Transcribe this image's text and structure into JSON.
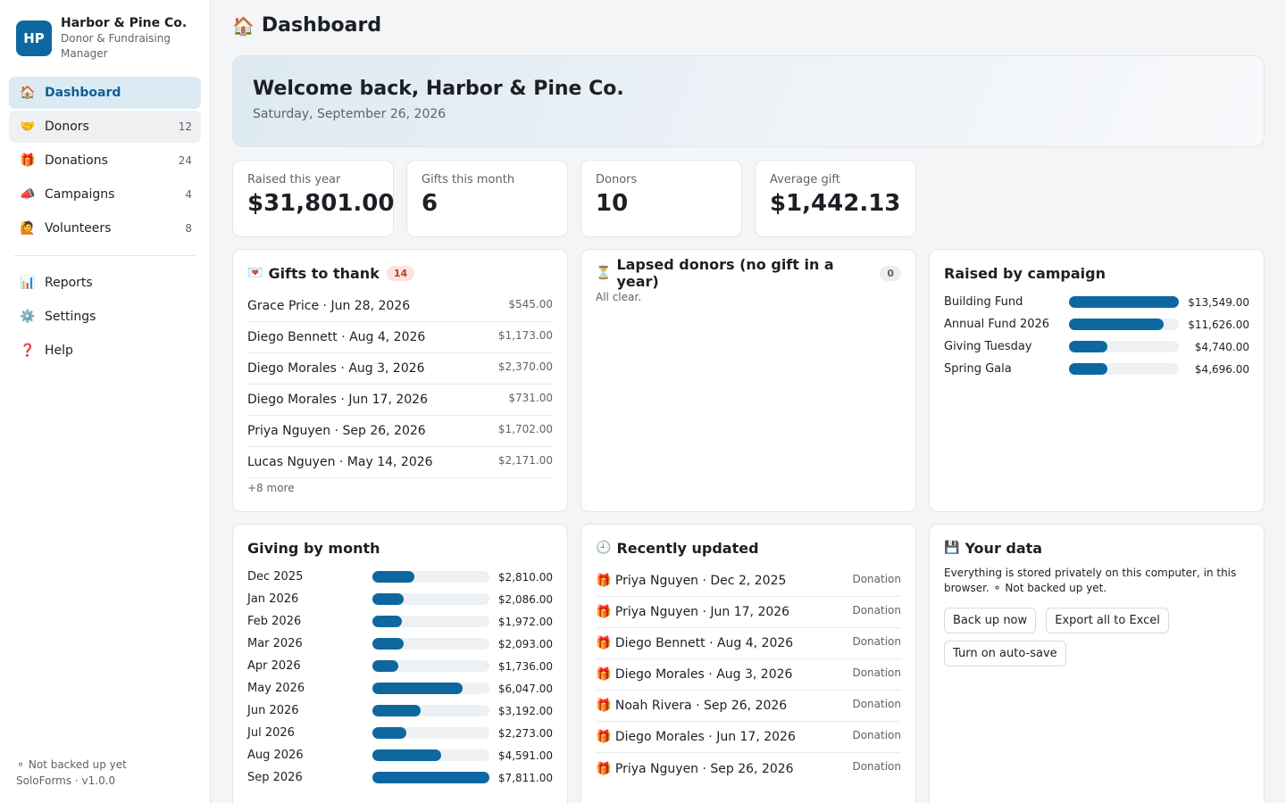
{
  "brand": {
    "initials": "HP",
    "name": "Harbor & Pine Co.",
    "subtitle": "Donor & Fundraising Manager"
  },
  "nav": {
    "main": [
      {
        "icon": "🏠",
        "label": "Dashboard",
        "count": ""
      },
      {
        "icon": "🤝",
        "label": "Donors",
        "count": "12"
      },
      {
        "icon": "🎁",
        "label": "Donations",
        "count": "24"
      },
      {
        "icon": "📣",
        "label": "Campaigns",
        "count": "4"
      },
      {
        "icon": "🙋",
        "label": "Volunteers",
        "count": "8"
      }
    ],
    "secondary": [
      {
        "icon": "📊",
        "label": "Reports"
      },
      {
        "icon": "⚙️",
        "label": "Settings"
      },
      {
        "icon": "❓",
        "label": "Help"
      }
    ]
  },
  "footer": {
    "backup_status": "⚬ Not backed up yet",
    "version": "SoloForms · v1.0.0"
  },
  "page": {
    "icon": "🏠",
    "title": "Dashboard"
  },
  "welcome": {
    "heading": "Welcome back, Harbor & Pine Co.",
    "date": "Saturday, September 26, 2026"
  },
  "stats": [
    {
      "label": "Raised this year",
      "value": "$31,801.00"
    },
    {
      "label": "Gifts this month",
      "value": "6"
    },
    {
      "label": "Donors",
      "value": "10"
    },
    {
      "label": "Average gift",
      "value": "$1,442.13"
    }
  ],
  "thank": {
    "icon": "💌",
    "title": "Gifts to thank",
    "count": "14",
    "items": [
      {
        "label": "Grace Price · Jun 28, 2026",
        "amount": "$545.00"
      },
      {
        "label": "Diego Bennett · Aug 4, 2026",
        "amount": "$1,173.00"
      },
      {
        "label": "Diego Morales · Aug 3, 2026",
        "amount": "$2,370.00"
      },
      {
        "label": "Diego Morales · Jun 17, 2026",
        "amount": "$731.00"
      },
      {
        "label": "Priya Nguyen · Sep 26, 2026",
        "amount": "$1,702.00"
      },
      {
        "label": "Lucas Nguyen · May 14, 2026",
        "amount": "$2,171.00"
      }
    ],
    "more": "+8 more"
  },
  "lapsed": {
    "icon": "⏳",
    "title": "Lapsed donors (no gift in a year)",
    "count": "0",
    "empty": "All clear."
  },
  "campaigns": {
    "title": "Raised by campaign",
    "items": [
      {
        "name": "Building Fund",
        "value": 13549,
        "display": "$13,549.00"
      },
      {
        "name": "Annual Fund 2026",
        "value": 11626,
        "display": "$11,626.00"
      },
      {
        "name": "Giving Tuesday",
        "value": 4740,
        "display": "$4,740.00"
      },
      {
        "name": "Spring Gala",
        "value": 4696,
        "display": "$4,696.00"
      }
    ]
  },
  "monthly": {
    "title": "Giving by month",
    "items": [
      {
        "month": "Dec 2025",
        "value": 2810,
        "display": "$2,810.00"
      },
      {
        "month": "Jan 2026",
        "value": 2086,
        "display": "$2,086.00"
      },
      {
        "month": "Feb 2026",
        "value": 1972,
        "display": "$1,972.00"
      },
      {
        "month": "Mar 2026",
        "value": 2093,
        "display": "$2,093.00"
      },
      {
        "month": "Apr 2026",
        "value": 1736,
        "display": "$1,736.00"
      },
      {
        "month": "May 2026",
        "value": 6047,
        "display": "$6,047.00"
      },
      {
        "month": "Jun 2026",
        "value": 3192,
        "display": "$3,192.00"
      },
      {
        "month": "Jul 2026",
        "value": 2273,
        "display": "$2,273.00"
      },
      {
        "month": "Aug 2026",
        "value": 4591,
        "display": "$4,591.00"
      },
      {
        "month": "Sep 2026",
        "value": 7811,
        "display": "$7,811.00"
      }
    ]
  },
  "recent": {
    "icon": "🕘",
    "title": "Recently updated",
    "items": [
      {
        "icon": "🎁",
        "label": "Priya Nguyen · Dec 2, 2025",
        "type": "Donation"
      },
      {
        "icon": "🎁",
        "label": "Priya Nguyen · Jun 17, 2026",
        "type": "Donation"
      },
      {
        "icon": "🎁",
        "label": "Diego Bennett · Aug 4, 2026",
        "type": "Donation"
      },
      {
        "icon": "🎁",
        "label": "Diego Morales · Aug 3, 2026",
        "type": "Donation"
      },
      {
        "icon": "🎁",
        "label": "Noah Rivera · Sep 26, 2026",
        "type": "Donation"
      },
      {
        "icon": "🎁",
        "label": "Diego Morales · Jun 17, 2026",
        "type": "Donation"
      },
      {
        "icon": "🎁",
        "label": "Priya Nguyen · Sep 26, 2026",
        "type": "Donation"
      }
    ]
  },
  "yourdata": {
    "icon": "💾",
    "title": "Your data",
    "text": "Everything is stored privately on this computer, in this browser. ⚬ Not backed up yet.",
    "buttons": {
      "backup": "Back up now",
      "export": "Export all to Excel",
      "autosave": "Turn on auto-save"
    }
  },
  "colors": {
    "accent": "#0f67a0",
    "active_bg": "#dcebf3"
  }
}
